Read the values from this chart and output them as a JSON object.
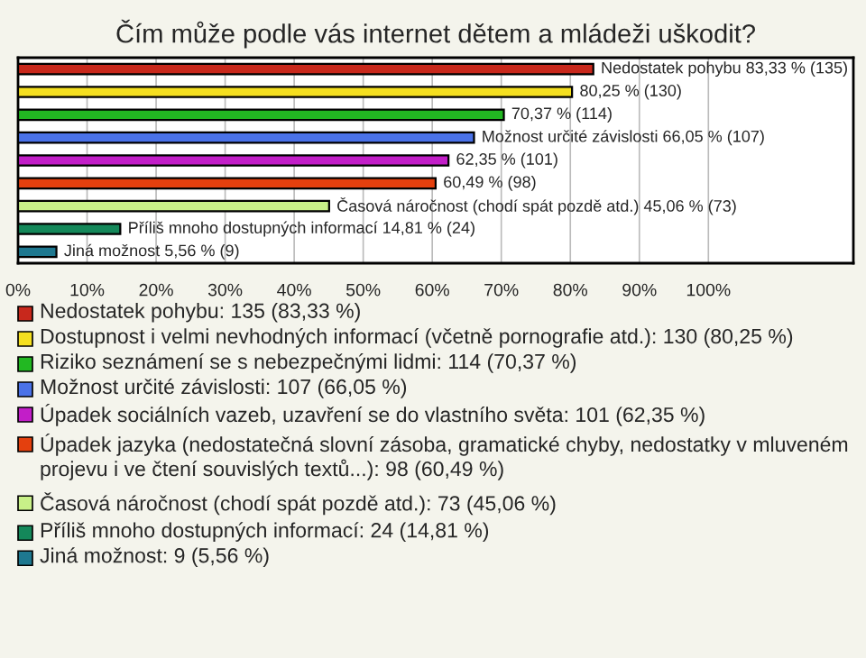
{
  "chart_data": {
    "type": "bar",
    "orientation": "horizontal",
    "title": "Čím může podle vás internet dětem a mládeži uškodit?",
    "categories": [
      null,
      null,
      null,
      null,
      null,
      null,
      null,
      null,
      null
    ],
    "series": [
      {
        "name": "Nedostatek pohybu: 135 (83,33 %)",
        "color": "#c8281c",
        "values": [
          83.33,
          null,
          null,
          null,
          null,
          null,
          null,
          null,
          null
        ],
        "value_labels": [
          "Nedostatek pohybu 83,33 % (135)",
          null,
          null,
          null,
          null,
          null,
          null,
          null,
          null
        ]
      },
      {
        "name": "Dostupnost i velmi nevhodných informací (včetně pornografie atd.): 130 (80,25 %)",
        "color": "#f5e020",
        "values": [
          null,
          80.25,
          null,
          null,
          null,
          null,
          null,
          null,
          null
        ],
        "value_labels": [
          null,
          "80,25 % (130)",
          null,
          null,
          null,
          null,
          null,
          null,
          null
        ]
      },
      {
        "name": "Riziko seznámení se s nebezpečnými lidmi: 114 (70,37 %)",
        "color": "#22b822",
        "values": [
          null,
          null,
          70.37,
          null,
          null,
          null,
          null,
          null,
          null
        ],
        "value_labels": [
          null,
          null,
          "70,37 % (114)",
          null,
          null,
          null,
          null,
          null,
          null
        ]
      },
      {
        "name": "Možnost určité závislosti: 107 (66,05 %)",
        "color": "#4a72e8",
        "values": [
          null,
          null,
          null,
          66.05,
          null,
          null,
          null,
          null,
          null
        ],
        "value_labels": [
          null,
          null,
          null,
          "Možnost určité závislosti 66,05 % (107)",
          null,
          null,
          null,
          null,
          null
        ]
      },
      {
        "name": "Úpadek sociálních vazeb, uzavření se do vlastního světa: 101 (62,35 %)",
        "color": "#c21ec8",
        "values": [
          null,
          null,
          null,
          null,
          62.35,
          null,
          null,
          null,
          null
        ],
        "value_labels": [
          null,
          null,
          null,
          null,
          "62,35 % (101)",
          null,
          null,
          null,
          null
        ]
      },
      {
        "name": "Úpadek jazyka (nedostatečná slovní zásoba, gramatické chyby, nedostatky v mluveném projevu i ve čtení souvislých textů...): 98 (60,49 %)",
        "color": "#e4400e",
        "values": [
          null,
          null,
          null,
          null,
          null,
          60.49,
          null,
          null,
          null
        ],
        "value_labels": [
          null,
          null,
          null,
          null,
          null,
          "60,49 % (98)",
          null,
          null,
          null
        ]
      },
      {
        "name": "Časová náročnost (chodí spát pozdě atd.): 73 (45,06 %)",
        "color": "#c8f088",
        "values": [
          null,
          null,
          null,
          null,
          null,
          null,
          45.06,
          null,
          null
        ],
        "value_labels": [
          null,
          null,
          null,
          null,
          null,
          null,
          "Časová náročnost (chodí spát pozdě atd.) 45,06 % (73)",
          null,
          null
        ]
      },
      {
        "name": "Příliš mnoho dostupných informací: 24 (14,81 %)",
        "color": "#14885a",
        "values": [
          null,
          null,
          null,
          null,
          null,
          null,
          null,
          14.81,
          null
        ],
        "value_labels": [
          null,
          null,
          null,
          null,
          null,
          null,
          null,
          "Příliš mnoho dostupných informací 14,81 % (24)",
          null
        ]
      },
      {
        "name": "Jiná možnost: 9 (5,56 %)",
        "color": "#1e7890",
        "values": [
          null,
          null,
          null,
          null,
          null,
          null,
          null,
          null,
          5.56
        ],
        "value_labels": [
          null,
          null,
          null,
          null,
          null,
          null,
          null,
          null,
          "Jiná možnost 5,56 % (9)"
        ]
      }
    ],
    "xlim": [
      0,
      121
    ],
    "xticks": [
      {
        "value": 0,
        "label": "0%"
      },
      {
        "value": 10,
        "label": "10%"
      },
      {
        "value": 20,
        "label": "20%"
      },
      {
        "value": 30,
        "label": "30%"
      },
      {
        "value": 40,
        "label": "40%"
      },
      {
        "value": 50,
        "label": "50%"
      },
      {
        "value": 60,
        "label": "60%"
      },
      {
        "value": 70,
        "label": "70%"
      },
      {
        "value": 80,
        "label": "80%"
      },
      {
        "value": 90,
        "label": "90%"
      },
      {
        "value": 100,
        "label": "100%"
      }
    ],
    "grid": "x",
    "legend": "bottom"
  }
}
